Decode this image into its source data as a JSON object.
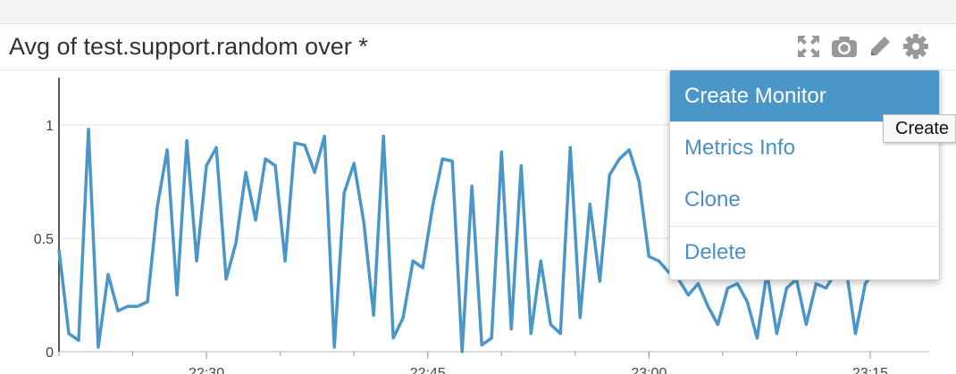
{
  "widget": {
    "title": "Avg of test.support.random over *"
  },
  "toolbar": {
    "icons": [
      "expand-icon",
      "camera-icon",
      "pencil-icon",
      "gear-icon"
    ],
    "icon_color": "#999999"
  },
  "menu": {
    "items": [
      {
        "label": "Create Monitor",
        "active": true
      },
      {
        "label": "Metrics Info",
        "active": false
      },
      {
        "label": "Clone",
        "active": false
      },
      {
        "label": "Delete",
        "active": false
      }
    ],
    "accent": "#4a96c8"
  },
  "tooltip": {
    "text": "Create"
  },
  "chart_data": {
    "type": "line",
    "title": "",
    "xlabel": "",
    "ylabel": "",
    "ylim": [
      0,
      1.2
    ],
    "xlim": [
      "22:20",
      "23:19"
    ],
    "grid": true,
    "y_ticks": [
      "0",
      "0.5",
      "1"
    ],
    "x_ticks": [
      "22:30",
      "22:45",
      "23:00",
      "23:15"
    ],
    "series": [
      {
        "color": "#4a96c8",
        "x": [
          "22:20",
          "22:20:40",
          "22:21:20",
          "22:22",
          "22:22:40",
          "22:23:20",
          "22:24",
          "22:24:40",
          "22:25:20",
          "22:26",
          "22:26:40",
          "22:27:20",
          "22:28",
          "22:28:40",
          "22:29:20",
          "22:30",
          "22:30:40",
          "22:31:20",
          "22:32",
          "22:32:40",
          "22:33:20",
          "22:34",
          "22:34:40",
          "22:35:20",
          "22:36",
          "22:36:40",
          "22:37:20",
          "22:38",
          "22:38:40",
          "22:39:20",
          "22:40",
          "22:40:40",
          "22:41:20",
          "22:42",
          "22:42:40",
          "22:43:20",
          "22:44",
          "22:44:40",
          "22:45:20",
          "22:46",
          "22:46:40",
          "22:47:20",
          "22:48",
          "22:48:40",
          "22:49:20",
          "22:50",
          "22:50:40",
          "22:51:20",
          "22:52",
          "22:52:40",
          "22:53:20",
          "22:54",
          "22:54:40",
          "22:55:20",
          "22:56",
          "22:56:40",
          "22:57:20",
          "22:58",
          "22:58:40",
          "22:59:20",
          "23:00",
          "23:00:40",
          "23:01:20",
          "23:02",
          "23:02:40",
          "23:03:20",
          "23:04",
          "23:04:40",
          "23:05:20",
          "23:06",
          "23:06:40",
          "23:07:20",
          "23:08",
          "23:08:40",
          "23:09:20",
          "23:10",
          "23:10:40",
          "23:11:20",
          "23:12",
          "23:12:40",
          "23:13:20",
          "23:14",
          "23:14:40",
          "23:15:20",
          "23:16"
        ],
        "y": [
          0.45,
          0.08,
          0.05,
          0.98,
          0.02,
          0.34,
          0.18,
          0.2,
          0.2,
          0.22,
          0.64,
          0.89,
          0.25,
          0.93,
          0.4,
          0.82,
          0.9,
          0.32,
          0.48,
          0.79,
          0.58,
          0.85,
          0.82,
          0.4,
          0.92,
          0.91,
          0.79,
          0.95,
          0.02,
          0.7,
          0.83,
          0.57,
          0.16,
          0.95,
          0.06,
          0.15,
          0.4,
          0.37,
          0.64,
          0.85,
          0.84,
          0.0,
          0.73,
          0.03,
          0.06,
          0.88,
          0.1,
          0.82,
          0.08,
          0.4,
          0.12,
          0.08,
          0.9,
          0.15,
          0.65,
          0.31,
          0.78,
          0.85,
          0.89,
          0.75,
          0.42,
          0.4,
          0.35,
          0.32,
          0.25,
          0.3,
          0.2,
          0.12,
          0.28,
          0.3,
          0.22,
          0.06,
          0.35,
          0.08,
          0.28,
          0.32,
          0.12,
          0.3,
          0.28,
          0.35,
          0.38,
          0.08,
          0.3,
          0.36,
          0.4
        ]
      }
    ]
  }
}
